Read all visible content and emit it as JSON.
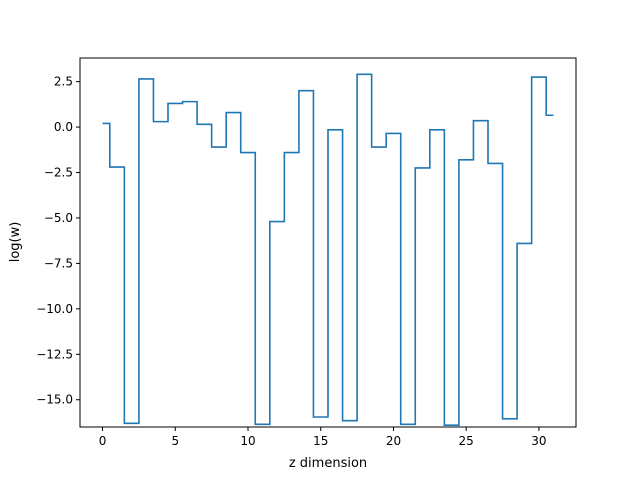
{
  "chart_data": {
    "type": "line",
    "drawstyle": "steps-mid",
    "xlabel": "z dimension",
    "ylabel": "log(w)",
    "xlim": [
      -1.55,
      32.55
    ],
    "ylim": [
      -16.5,
      3.8
    ],
    "grid": false,
    "x": [
      0,
      1,
      2,
      3,
      4,
      5,
      6,
      7,
      8,
      9,
      10,
      11,
      12,
      13,
      14,
      15,
      16,
      17,
      18,
      19,
      20,
      21,
      22,
      23,
      24,
      25,
      26,
      27,
      28,
      29,
      30,
      31
    ],
    "series": [
      {
        "color": "#1f77b4",
        "values": [
          0.2,
          -2.2,
          -16.3,
          2.65,
          0.3,
          1.3,
          1.4,
          0.15,
          -1.1,
          0.8,
          -1.4,
          -16.35,
          -5.2,
          -1.4,
          2.0,
          -15.95,
          -0.15,
          -16.15,
          2.9,
          -1.1,
          -0.35,
          -16.35,
          -2.25,
          -0.15,
          -16.4,
          -1.8,
          0.35,
          -2.0,
          -16.05,
          -6.4,
          2.75,
          0.65
        ]
      }
    ],
    "xticks": [
      0,
      5,
      10,
      15,
      20,
      25,
      30
    ],
    "xtick_labels": [
      "0",
      "5",
      "10",
      "15",
      "20",
      "25",
      "30"
    ],
    "yticks": [
      2.5,
      0.0,
      -2.5,
      -5.0,
      -7.5,
      -10.0,
      -12.5,
      -15.0
    ],
    "ytick_labels": [
      "2.5",
      "0.0",
      "−2.5",
      "−5.0",
      "−7.5",
      "−10.0",
      "−12.5",
      "−15.0"
    ]
  }
}
